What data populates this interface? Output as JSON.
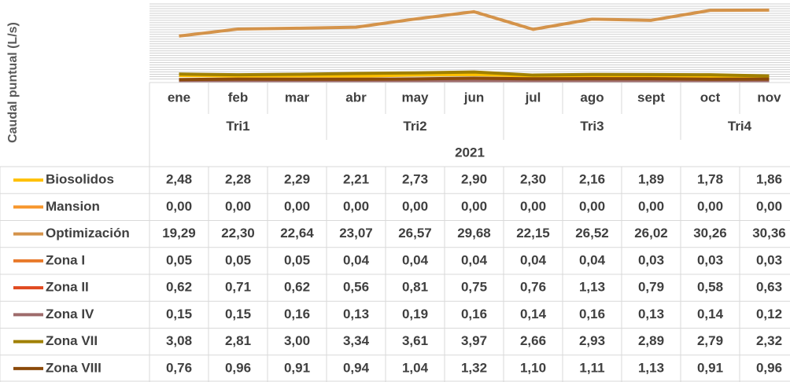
{
  "chart_data": {
    "type": "line",
    "y_label": "Caudal puntual (L/s)",
    "categories": [
      "ene",
      "feb",
      "mar",
      "abr",
      "may",
      "jun",
      "jul",
      "ago",
      "sept",
      "oct",
      "nov"
    ],
    "groups": [
      {
        "label": "Tri1",
        "span": 3
      },
      {
        "label": "Tri2",
        "span": 3
      },
      {
        "label": "Tri3",
        "span": 3
      },
      {
        "label": "Tri4",
        "span": 2
      }
    ],
    "year": "2021",
    "ylim": [
      0,
      33
    ],
    "yticks": [
      1,
      2,
      3,
      4,
      5,
      6,
      7,
      8,
      9,
      10,
      11,
      12,
      13,
      14,
      15,
      16,
      17,
      18,
      19,
      20,
      21,
      22,
      23,
      24,
      25,
      26,
      27,
      28,
      29,
      30,
      31,
      32,
      33
    ],
    "grid": true,
    "series": [
      {
        "name": "Biosolidos",
        "color": "#ffc000",
        "values": [
          2.48,
          2.28,
          2.29,
          2.21,
          2.73,
          2.9,
          2.3,
          2.16,
          1.89,
          1.78,
          1.86
        ],
        "value_labels": [
          "2,48",
          "2,28",
          "2,29",
          "2,21",
          "2,73",
          "2,90",
          "2,30",
          "2,16",
          "1,89",
          "1,78",
          "1,86"
        ]
      },
      {
        "name": "Mansion",
        "color": "#f7962c",
        "values": [
          0,
          0,
          0,
          0,
          0,
          0,
          0,
          0,
          0,
          0,
          0
        ],
        "value_labels": [
          "0,00",
          "0,00",
          "0,00",
          "0,00",
          "0,00",
          "0,00",
          "0,00",
          "0,00",
          "0,00",
          "0,00",
          "0,00"
        ]
      },
      {
        "name": "Optimización",
        "color": "#d4934a",
        "values": [
          19.29,
          22.3,
          22.64,
          23.07,
          26.57,
          29.68,
          22.15,
          26.52,
          26.02,
          30.26,
          30.36
        ],
        "value_labels": [
          "19,29",
          "22,30",
          "22,64",
          "23,07",
          "26,57",
          "29,68",
          "22,15",
          "26,52",
          "26,02",
          "30,26",
          "30,36"
        ]
      },
      {
        "name": "Zona I",
        "color": "#e8792a",
        "values": [
          0.05,
          0.05,
          0.05,
          0.04,
          0.04,
          0.04,
          0.04,
          0.04,
          0.03,
          0.03,
          0.03
        ],
        "value_labels": [
          "0,05",
          "0,05",
          "0,05",
          "0,04",
          "0,04",
          "0,04",
          "0,04",
          "0,04",
          "0,03",
          "0,03",
          "0,03"
        ]
      },
      {
        "name": "Zona II",
        "color": "#e04a1f",
        "values": [
          0.62,
          0.71,
          0.62,
          0.56,
          0.81,
          0.75,
          0.76,
          1.13,
          0.79,
          0.58,
          0.63
        ],
        "value_labels": [
          "0,62",
          "0,71",
          "0,62",
          "0,56",
          "0,81",
          "0,75",
          "0,76",
          "1,13",
          "0,79",
          "0,58",
          "0,63"
        ]
      },
      {
        "name": "Zona IV",
        "color": "#9e6b6b",
        "values": [
          0.15,
          0.15,
          0.16,
          0.13,
          0.19,
          0.16,
          0.14,
          0.16,
          0.13,
          0.14,
          0.12
        ],
        "value_labels": [
          "0,15",
          "0,15",
          "0,16",
          "0,13",
          "0,19",
          "0,16",
          "0,14",
          "0,16",
          "0,13",
          "0,14",
          "0,12"
        ]
      },
      {
        "name": "Zona VII",
        "color": "#a08000",
        "values": [
          3.08,
          2.81,
          3.0,
          3.34,
          3.61,
          3.97,
          2.66,
          2.93,
          2.89,
          2.79,
          2.32
        ],
        "value_labels": [
          "3,08",
          "2,81",
          "3,00",
          "3,34",
          "3,61",
          "3,97",
          "2,66",
          "2,93",
          "2,89",
          "2,79",
          "2,32"
        ]
      },
      {
        "name": "Zona VIII",
        "color": "#8b4a0a",
        "values": [
          0.76,
          0.96,
          0.91,
          0.94,
          1.04,
          1.32,
          1.1,
          1.11,
          1.13,
          0.91,
          0.96
        ],
        "value_labels": [
          "0,76",
          "0,96",
          "0,91",
          "0,94",
          "1,04",
          "1,32",
          "1,10",
          "1,11",
          "1,13",
          "0,91",
          "0,96"
        ]
      }
    ]
  }
}
